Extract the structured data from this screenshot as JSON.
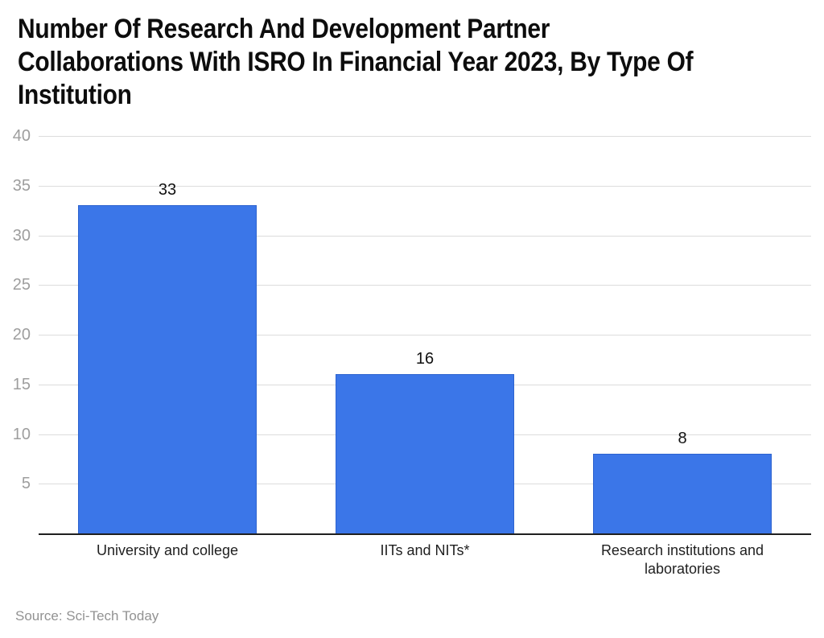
{
  "title": {
    "text": "Number Of Research And Development Partner Collaborations With ISRO In Financial Year 2023, By Type Of Institution",
    "lines": [
      "Number Of Research And Development Partner",
      "Collaborations With ISRO In Financial Year 2023, By Type Of",
      "Institution"
    ]
  },
  "source": {
    "label": "Source: Sci-Tech Today"
  },
  "colors": {
    "background": "#ffffff",
    "bar_fill": "#3b76e8",
    "bar_edge": "#2d63cf",
    "gridline": "#dcdcdc",
    "axis_line": "#1f1f1f",
    "tick_label": "#9e9e9e",
    "value_label": "#111111",
    "category_label": "#1f1f1f",
    "title_text": "#0d0d0d",
    "source_text": "#929292"
  },
  "chart_data": {
    "type": "bar",
    "title": "Number Of Research And Development Partner Collaborations With ISRO In Financial Year 2023, By Type Of Institution",
    "categories": [
      "University and college",
      "IITs and NITs*",
      "Research institutions and laboratories"
    ],
    "values": [
      33,
      16,
      8
    ],
    "data_labels": [
      "33",
      "16",
      "8"
    ],
    "y_ticks": [
      5,
      10,
      15,
      20,
      25,
      30,
      35,
      40
    ],
    "xlabel": "",
    "ylabel": "",
    "ylim": [
      0,
      40
    ],
    "grid": true,
    "legend": false,
    "source": "Source: Sci-Tech Today"
  }
}
